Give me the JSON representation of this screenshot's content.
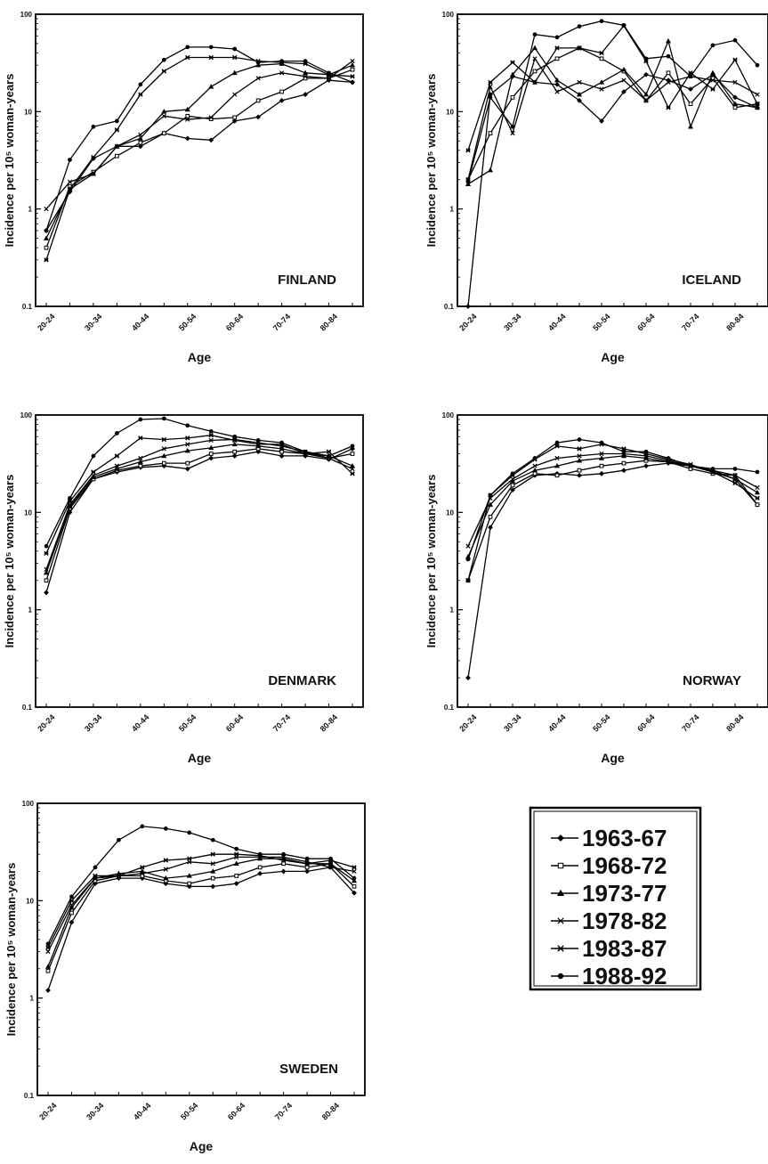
{
  "chart_data": [
    {
      "type": "line",
      "panel_label": "FINLAND",
      "ylabel": "Incidence per 10⁵ woman-years",
      "xlabel": "Age",
      "yscale": "log",
      "ylim": [
        0.1,
        100
      ],
      "y_ticks": [
        "0.1",
        "1",
        "10",
        "100"
      ],
      "categories": [
        "20-24",
        "25-29",
        "30-34",
        "35-39",
        "40-44",
        "45-49",
        "50-54",
        "55-59",
        "60-64",
        "65-69",
        "70-74",
        "75-79",
        "80-84",
        "85+"
      ],
      "x_tick_labels": [
        "20-24",
        "30-34",
        "40-44",
        "50-54",
        "60-64",
        "70-74",
        "80-84"
      ],
      "series": [
        {
          "name": "1963-67",
          "values": [
            0.6,
            1.5,
            3.3,
            4.4,
            4.4,
            6.0,
            5.3,
            5.1,
            8.0,
            8.8,
            13.0,
            15.0,
            21.0,
            20.0
          ]
        },
        {
          "name": "1968-72",
          "values": [
            0.4,
            1.7,
            2.4,
            3.5,
            4.8,
            6.0,
            9.0,
            8.4,
            8.7,
            13.0,
            16.0,
            22.0,
            22.0,
            27.0
          ]
        },
        {
          "name": "1973-77",
          "values": [
            0.5,
            1.6,
            2.3,
            4.4,
            5.3,
            10.0,
            10.5,
            18.0,
            25.0,
            30.0,
            31.0,
            25.0,
            24.0,
            30.0
          ]
        },
        {
          "name": "1978-82",
          "values": [
            1.0,
            1.9,
            2.3,
            4.4,
            5.8,
            9.0,
            8.3,
            8.7,
            15.0,
            22.0,
            25.0,
            23.0,
            22.0,
            33.0
          ]
        },
        {
          "name": "1983-87",
          "values": [
            0.3,
            1.6,
            3.4,
            6.5,
            15.0,
            26.0,
            36.0,
            36.0,
            36.0,
            33.0,
            32.0,
            31.0,
            24.0,
            23.0
          ]
        },
        {
          "name": "1988-92",
          "values": [
            0.6,
            3.2,
            7.0,
            8.0,
            19.0,
            34.0,
            46.0,
            46.0,
            44.0,
            32.0,
            33.0,
            33.0,
            25.0,
            20.0
          ]
        }
      ]
    },
    {
      "type": "line",
      "panel_label": "ICELAND",
      "ylabel": "Incidence per 10⁵ woman-years",
      "xlabel": "Age",
      "yscale": "log",
      "ylim": [
        0.1,
        100
      ],
      "y_ticks": [
        "0.1",
        "1",
        "10",
        "100"
      ],
      "categories": [
        "20-24",
        "25-29",
        "30-34",
        "35-39",
        "40-44",
        "45-49",
        "50-54",
        "55-59",
        "60-64",
        "65-69",
        "70-74",
        "75-79",
        "80-84",
        "85+"
      ],
      "x_tick_labels": [
        "20-24",
        "30-34",
        "40-44",
        "50-54",
        "60-64",
        "70-74",
        "80-84"
      ],
      "series": [
        {
          "name": "1963-67",
          "values": [
            0.1,
            15.0,
            23.0,
            20.0,
            19.0,
            13.0,
            8.0,
            16.0,
            24.0,
            21.0,
            17.0,
            24.0,
            14.0,
            11.0
          ]
        },
        {
          "name": "1968-72",
          "values": [
            2.0,
            6.0,
            14.0,
            26.0,
            35.0,
            45.0,
            35.0,
            26.0,
            13.0,
            25.0,
            12.0,
            22.0,
            11.0,
            12.0
          ]
        },
        {
          "name": "1973-77",
          "values": [
            1.8,
            2.5,
            24.0,
            45.0,
            21.0,
            15.0,
            20.0,
            27.0,
            15.0,
            53.0,
            7.0,
            25.0,
            12.0,
            11.0
          ]
        },
        {
          "name": "1978-82",
          "values": [
            2.0,
            18.0,
            6.0,
            35.0,
            16.0,
            20.0,
            17.0,
            21.0,
            13.0,
            20.0,
            23.0,
            21.0,
            20.0,
            15.0
          ]
        },
        {
          "name": "1983-87",
          "values": [
            4.0,
            20.0,
            32.0,
            20.0,
            45.0,
            45.0,
            40.0,
            76.0,
            33.0,
            11.0,
            25.0,
            17.0,
            34.0,
            12.0
          ]
        },
        {
          "name": "1988-92",
          "values": [
            1.9,
            14.0,
            7.0,
            62.0,
            58.0,
            75.0,
            85.0,
            77.0,
            35.0,
            37.0,
            23.0,
            48.0,
            54.0,
            30.0
          ]
        }
      ]
    },
    {
      "type": "line",
      "panel_label": "DENMARK",
      "ylabel": "Incidence per 10⁵ woman-years",
      "xlabel": "Age",
      "yscale": "log",
      "ylim": [
        0.1,
        100
      ],
      "y_ticks": [
        "0.1",
        "1",
        "10",
        "100"
      ],
      "categories": [
        "20-24",
        "25-29",
        "30-34",
        "35-39",
        "40-44",
        "45-49",
        "50-54",
        "55-59",
        "60-64",
        "65-69",
        "70-74",
        "75-79",
        "80-84",
        "85+"
      ],
      "x_tick_labels": [
        "20-24",
        "30-34",
        "40-44",
        "50-54",
        "60-64",
        "70-74",
        "80-84"
      ],
      "series": [
        {
          "name": "1963-67",
          "values": [
            1.5,
            10.0,
            22.0,
            26.0,
            29.0,
            30.0,
            28.0,
            36.0,
            38.0,
            42.0,
            38.0,
            38.0,
            35.0,
            45.0
          ]
        },
        {
          "name": "1968-72",
          "values": [
            2.0,
            11.0,
            22.0,
            27.0,
            30.0,
            32.0,
            32.0,
            40.0,
            42.0,
            45.0,
            42.0,
            40.0,
            36.0,
            40.0
          ]
        },
        {
          "name": "1973-77",
          "values": [
            2.4,
            11.5,
            23.0,
            28.0,
            33.0,
            38.0,
            43.0,
            46.0,
            50.0,
            48.0,
            45.0,
            40.0,
            38.0,
            30.0
          ]
        },
        {
          "name": "1978-82",
          "values": [
            2.6,
            12.0,
            24.0,
            30.0,
            36.0,
            45.0,
            50.0,
            55.0,
            56.0,
            52.0,
            48.0,
            42.0,
            36.0,
            28.0
          ]
        },
        {
          "name": "1983-87",
          "values": [
            3.8,
            13.0,
            26.0,
            38.0,
            58.0,
            56.0,
            58.0,
            62.0,
            55.0,
            50.0,
            50.0,
            40.0,
            42.0,
            25.0
          ]
        },
        {
          "name": "1988-92",
          "values": [
            4.5,
            14.0,
            38.0,
            65.0,
            90.0,
            92.0,
            78.0,
            68.0,
            60.0,
            55.0,
            52.0,
            42.0,
            38.0,
            48.0
          ]
        }
      ]
    },
    {
      "type": "line",
      "panel_label": "NORWAY",
      "ylabel": "Incidence per 10⁵ woman-years",
      "xlabel": "Age",
      "yscale": "log",
      "ylim": [
        0.1,
        100
      ],
      "y_ticks": [
        "0.1",
        "1",
        "10",
        "100"
      ],
      "categories": [
        "20-24",
        "25-29",
        "30-34",
        "35-39",
        "40-44",
        "45-49",
        "50-54",
        "55-59",
        "60-64",
        "65-69",
        "70-74",
        "75-79",
        "80-84",
        "85+"
      ],
      "x_tick_labels": [
        "20-24",
        "30-34",
        "40-44",
        "50-54",
        "60-64",
        "70-74",
        "80-84"
      ],
      "series": [
        {
          "name": "1963-67",
          "values": [
            0.2,
            7.0,
            17.0,
            24.0,
            25.0,
            24.0,
            25.0,
            27.0,
            30.0,
            32.0,
            30.0,
            27.0,
            22.0,
            12.0
          ]
        },
        {
          "name": "1968-72",
          "values": [
            2.0,
            9.0,
            19.0,
            25.0,
            24.0,
            27.0,
            30.0,
            32.0,
            34.0,
            33.0,
            28.0,
            25.0,
            24.0,
            12.0
          ]
        },
        {
          "name": "1973-77",
          "values": [
            3.5,
            12.0,
            21.0,
            27.0,
            30.0,
            34.0,
            36.0,
            38.0,
            36.0,
            33.0,
            30.0,
            26.0,
            22.0,
            16.0
          ]
        },
        {
          "name": "1978-82",
          "values": [
            4.5,
            14.0,
            22.0,
            30.0,
            36.0,
            38.0,
            40.0,
            40.0,
            38.0,
            34.0,
            30.0,
            27.0,
            24.0,
            18.0
          ]
        },
        {
          "name": "1983-87",
          "values": [
            2.0,
            15.0,
            24.0,
            35.0,
            48.0,
            45.0,
            50.0,
            45.0,
            40.0,
            35.0,
            31.0,
            26.0,
            20.0,
            14.0
          ]
        },
        {
          "name": "1988-92",
          "values": [
            3.3,
            15.0,
            25.0,
            36.0,
            52.0,
            56.0,
            52.0,
            42.0,
            42.0,
            36.0,
            30.0,
            28.0,
            28.0,
            26.0
          ]
        }
      ]
    },
    {
      "type": "line",
      "panel_label": "SWEDEN",
      "ylabel": "Incidence per 10⁵ woman-years",
      "xlabel": "Age",
      "yscale": "log",
      "ylim": [
        0.1,
        100
      ],
      "y_ticks": [
        "0.1",
        "1",
        "10",
        "100"
      ],
      "categories": [
        "20-24",
        "25-29",
        "30-34",
        "35-39",
        "40-44",
        "45-49",
        "50-54",
        "55-59",
        "60-64",
        "65-69",
        "70-74",
        "75-79",
        "80-84",
        "85+"
      ],
      "x_tick_labels": [
        "20-24",
        "30-34",
        "40-44",
        "50-54",
        "60-64",
        "70-74",
        "80-84"
      ],
      "series": [
        {
          "name": "1963-67",
          "values": [
            1.2,
            6.0,
            15.0,
            17.0,
            17.0,
            15.0,
            14.0,
            14.0,
            15.0,
            19.0,
            20.0,
            20.0,
            22.0,
            12.0
          ]
        },
        {
          "name": "1968-72",
          "values": [
            1.9,
            7.5,
            16.0,
            18.0,
            18.0,
            16.0,
            15.0,
            17.0,
            18.0,
            22.0,
            24.0,
            22.0,
            24.0,
            14.0
          ]
        },
        {
          "name": "1973-77",
          "values": [
            2.1,
            8.5,
            17.0,
            19.0,
            20.0,
            17.0,
            18.0,
            20.0,
            24.0,
            27.0,
            27.0,
            24.0,
            24.0,
            16.0
          ]
        },
        {
          "name": "1978-82",
          "values": [
            3.0,
            9.0,
            17.0,
            18.0,
            19.0,
            21.0,
            25.0,
            24.0,
            28.0,
            28.0,
            28.0,
            25.0,
            22.0,
            20.0
          ]
        },
        {
          "name": "1983-87",
          "values": [
            3.3,
            10.0,
            18.0,
            18.0,
            22.0,
            26.0,
            27.0,
            30.0,
            30.0,
            29.0,
            26.0,
            24.0,
            26.0,
            22.0
          ]
        },
        {
          "name": "1988-92",
          "values": [
            3.6,
            11.0,
            22.0,
            42.0,
            58.0,
            55.0,
            50.0,
            42.0,
            34.0,
            30.0,
            30.0,
            27.0,
            27.0,
            17.0
          ]
        }
      ]
    }
  ],
  "legend": {
    "items": [
      {
        "label": "1963-67",
        "marker": "diamond-filled"
      },
      {
        "label": "1968-72",
        "marker": "square-open"
      },
      {
        "label": "1973-77",
        "marker": "triangle-filled"
      },
      {
        "label": "1978-82",
        "marker": "x-cross"
      },
      {
        "label": "1983-87",
        "marker": "star-asterisk"
      },
      {
        "label": "1988-92",
        "marker": "circle-filled"
      }
    ]
  }
}
